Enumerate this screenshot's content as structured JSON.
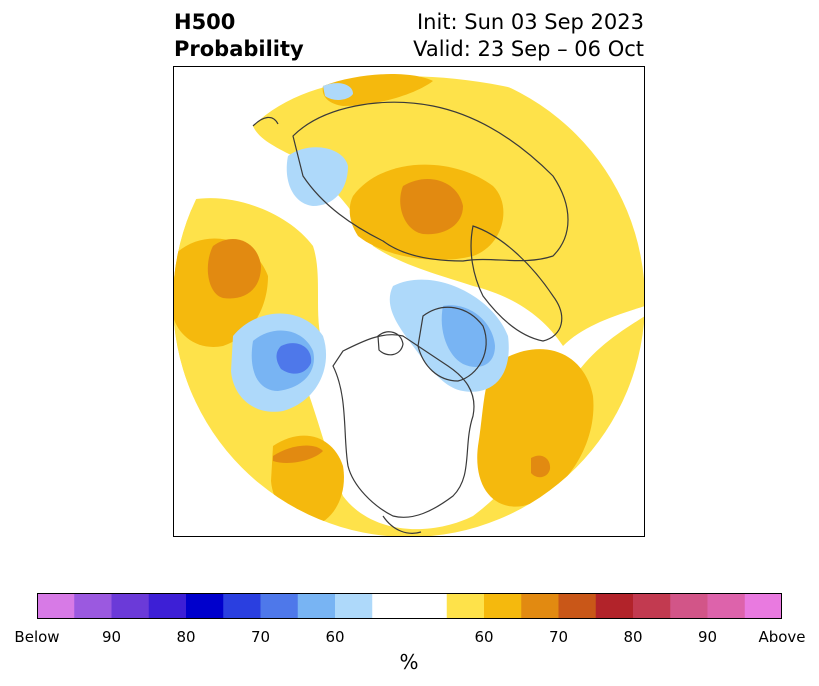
{
  "title": {
    "left_line1": "H500",
    "left_line2": "Probability",
    "right_line1": "Init: Sun 03 Sep 2023",
    "right_line2": "Valid: 23 Sep – 06 Oct"
  },
  "colorbar": {
    "unit": "%",
    "colors": [
      "#d77ae6",
      "#9b59e0",
      "#6b3ad8",
      "#3d1fd6",
      "#0000cc",
      "#2a3fe0",
      "#4e78ea",
      "#78b4f3",
      "#aed9fa",
      "#ffffff",
      "#ffffff",
      "#fee24a",
      "#f5b90d",
      "#e28a11",
      "#c95718",
      "#b2232a",
      "#c23a50",
      "#d25588",
      "#dd63ab",
      "#e97ae0"
    ],
    "tick_labels": [
      "Below",
      "90",
      "80",
      "70",
      "60",
      "60",
      "70",
      "80",
      "90",
      "Above"
    ]
  },
  "map": {
    "projection": "north-polar-stereographic",
    "field": "500 hPa height probability",
    "background_color": "#ffffff",
    "coastline_color": "#333333"
  }
}
